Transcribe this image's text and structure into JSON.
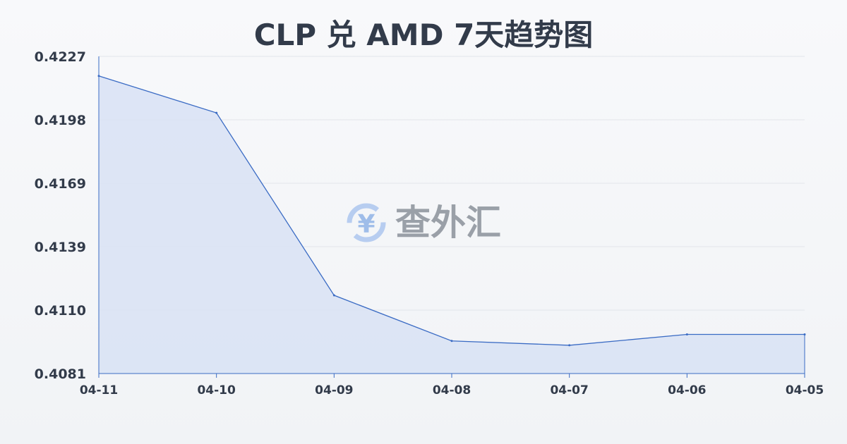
{
  "chart_data": {
    "type": "area",
    "title": "CLP 兑 AMD 7天趋势图",
    "xlabel": "",
    "ylabel": "",
    "categories": [
      "04-11",
      "04-10",
      "04-09",
      "04-08",
      "04-07",
      "04-06",
      "04-05"
    ],
    "series": [
      {
        "values": [
          0.4218,
          0.4201,
          0.4117,
          0.4096,
          0.4094,
          0.4099,
          0.4099
        ]
      }
    ],
    "y_ticks": [
      "0.4227",
      "0.4198",
      "0.4169",
      "0.4139",
      "0.4110",
      "0.4081"
    ],
    "ylim": [
      0.4081,
      0.4227
    ],
    "grid": true,
    "legend": "none",
    "colors": {
      "line": "#3a6bc4",
      "fill": "#d8e2f5",
      "grid": "#e2e5ea",
      "text": "#323b4a"
    }
  },
  "watermark": {
    "text": "查外汇",
    "icon": "yen-exchange-icon"
  }
}
